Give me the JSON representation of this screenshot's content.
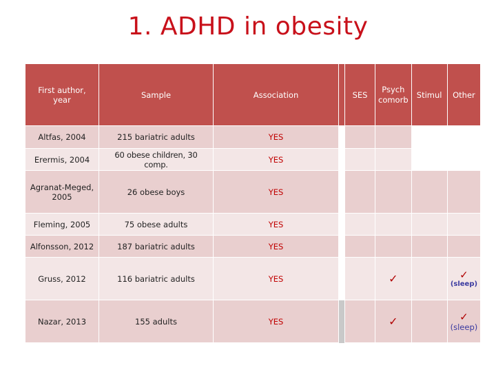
{
  "title": "1. ADHD in obesity",
  "headers": {
    "author": "First author, year",
    "sample": "Sample",
    "association": "Association",
    "ses": "SES",
    "psych": "Psych comorb",
    "stimul": "Stimul",
    "other": "Other"
  },
  "rows": [
    {
      "author": "Altfas, 2004",
      "sample": "215 bariatric adults",
      "association": "YES",
      "psych": "",
      "other_mark": "",
      "other_note": ""
    },
    {
      "author": "Erermis, 2004",
      "sample": "60 obese children, 30 comp.",
      "association": "YES",
      "psych": "",
      "other_mark": "",
      "other_note": ""
    },
    {
      "author": "Agranat-Meged, 2005",
      "sample": "26 obese boys",
      "association": "YES",
      "psych": "",
      "other_mark": "",
      "other_note": ""
    },
    {
      "author": "Fleming, 2005",
      "sample": "75 obese adults",
      "association": "YES",
      "psych": "",
      "other_mark": "",
      "other_note": ""
    },
    {
      "author": "Alfonsson, 2012",
      "sample": "187 bariatric adults",
      "association": "YES",
      "psych": "",
      "other_mark": "",
      "other_note": ""
    },
    {
      "author": "Gruss, 2012",
      "sample": "116 bariatric adults",
      "association": "YES",
      "psych": "✓",
      "other_mark": "✓",
      "other_note": "(sleep)"
    },
    {
      "author": "Nazar, 2013",
      "sample": "155 adults",
      "association": "YES",
      "psych": "✓",
      "other_mark": "✓",
      "other_note": "(sleep)"
    }
  ]
}
